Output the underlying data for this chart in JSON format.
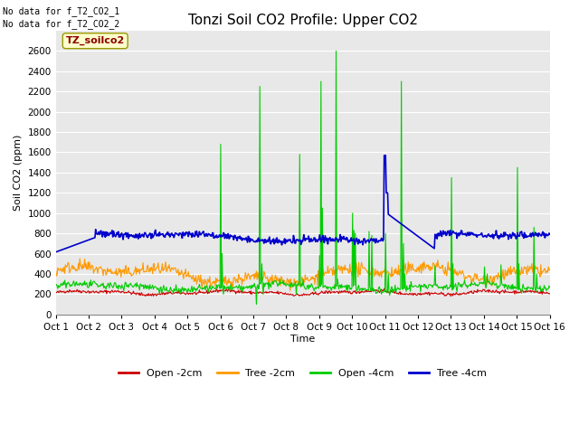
{
  "title": "Tonzi Soil CO2 Profile: Upper CO2",
  "ylabel": "Soil CO2 (ppm)",
  "xlabel": "Time",
  "top_left_text_line1": "No data for f_T2_CO2_1",
  "top_left_text_line2": "No data for f_T2_CO2_2",
  "legend_label_text": "TZ_soilco2",
  "legend_entries": [
    "Open -2cm",
    "Tree -2cm",
    "Open -4cm",
    "Tree -4cm"
  ],
  "legend_colors": [
    "#cc0000",
    "#ff9900",
    "#00cc00",
    "#0000cc"
  ],
  "ylim": [
    0,
    2800
  ],
  "yticks": [
    0,
    200,
    400,
    600,
    800,
    1000,
    1200,
    1400,
    1600,
    1800,
    2000,
    2200,
    2400,
    2600
  ],
  "xtick_labels": [
    "Oct 1",
    "Oct 2",
    "Oct 3",
    "Oct 4",
    "Oct 5",
    "Oct 6",
    "Oct 7",
    "Oct 8",
    "Oct 9",
    "Oct 10",
    "Oct 11",
    "Oct 12",
    "Oct 13",
    "Oct 14",
    "Oct 15",
    "Oct 16"
  ],
  "n_points": 720,
  "figure_bg_color": "#ffffff",
  "plot_bg_color": "#e8e8e8",
  "grid_color": "#ffffff",
  "title_fontsize": 11,
  "axis_label_fontsize": 8,
  "tick_fontsize": 7.5,
  "legend_fontsize": 8
}
